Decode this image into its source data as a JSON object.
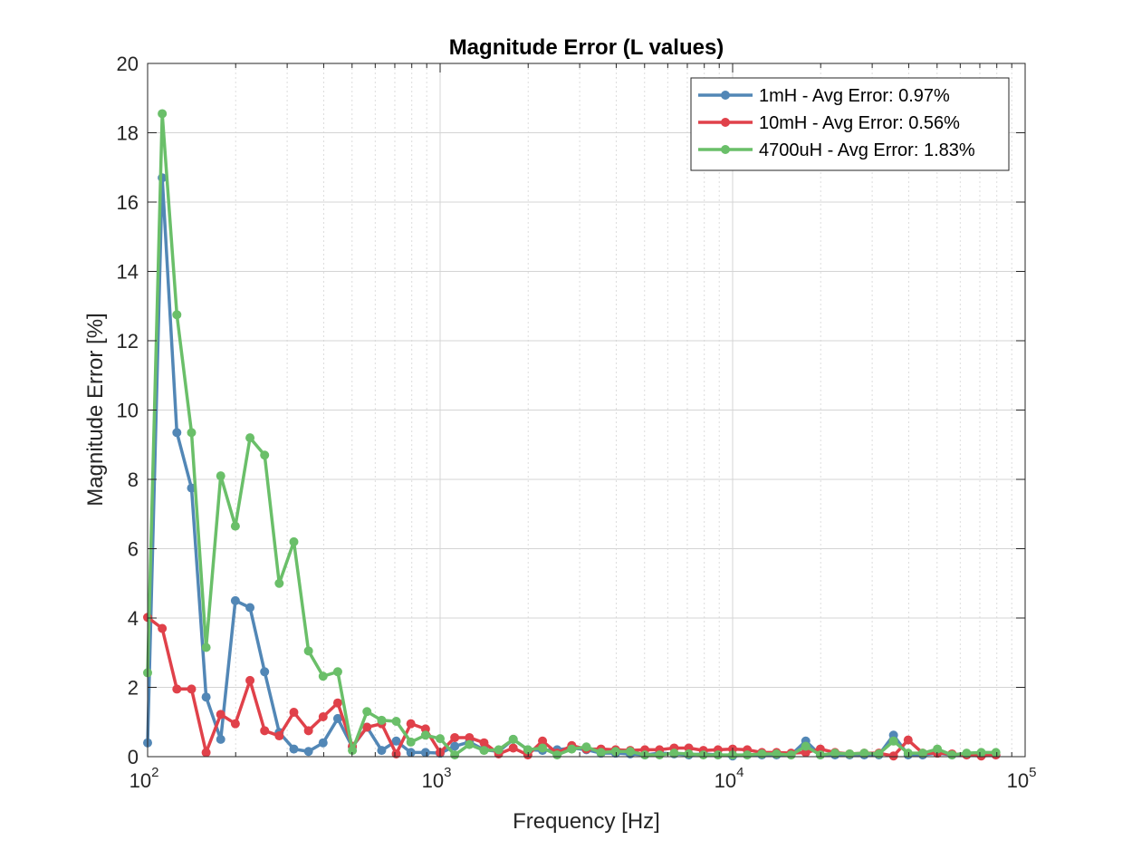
{
  "chart_data": {
    "type": "line",
    "title": "Magnitude Error (L values)",
    "xlabel": "Frequency [Hz]",
    "ylabel": "Magnitude Error [%]",
    "xscale": "log",
    "xlim": [
      100,
      100000
    ],
    "ylim": [
      0,
      20
    ],
    "grid": true,
    "legend_position": "top-right",
    "yticks": [
      "0",
      "2",
      "4",
      "6",
      "8",
      "10",
      "12",
      "14",
      "16",
      "18",
      "20"
    ],
    "xticks": [
      {
        "base": "10",
        "exp": "2"
      },
      {
        "base": "10",
        "exp": "3"
      },
      {
        "base": "10",
        "exp": "4"
      },
      {
        "base": "10",
        "exp": "5"
      }
    ],
    "x": [
      100,
      112.2,
      125.9,
      141.3,
      158.5,
      177.8,
      199.5,
      223.9,
      251.2,
      281.8,
      316.2,
      354.8,
      398.1,
      446.7,
      501.2,
      562.3,
      631,
      707.9,
      794.3,
      891.3,
      1000,
      1122,
      1259,
      1413,
      1585,
      1778,
      1995,
      2239,
      2512,
      2818,
      3162,
      3548,
      3981,
      4467,
      5012,
      5623,
      6310,
      7079,
      7943,
      8913,
      10000,
      11220,
      12590,
      14130,
      15850,
      17780,
      19950,
      22390,
      25120,
      28180,
      31620,
      35480,
      39810,
      44670,
      50120,
      56230,
      63100,
      70790,
      79430
    ],
    "series": [
      {
        "name": "1mH - Avg Error: 0.97%",
        "color": "#5287b6",
        "values": [
          0.4,
          16.7,
          9.35,
          7.75,
          1.72,
          0.5,
          4.5,
          4.3,
          2.45,
          0.7,
          0.22,
          0.15,
          0.4,
          1.1,
          0.28,
          0.85,
          0.18,
          0.45,
          0.12,
          0.12,
          0.1,
          0.3,
          0.42,
          0.2,
          0.15,
          0.5,
          0.2,
          0.18,
          0.2,
          0.25,
          0.2,
          0.1,
          0.1,
          0.08,
          0.05,
          0.1,
          0.08,
          0.05,
          0.08,
          0.05,
          0.02,
          0.05,
          0.05,
          0.05,
          0.05,
          0.45,
          0.05,
          0.05,
          0.05,
          0.05,
          0.05,
          0.62,
          0.05,
          0.05,
          0.1,
          0.05,
          0.05,
          0.05,
          0.05
        ]
      },
      {
        "name": "10mH - Avg Error: 0.56%",
        "color": "#e0414a",
        "values": [
          4.02,
          3.7,
          1.95,
          1.95,
          0.12,
          1.22,
          0.95,
          2.2,
          0.75,
          0.6,
          1.28,
          0.75,
          1.15,
          1.55,
          0.3,
          0.85,
          0.95,
          0.08,
          0.95,
          0.8,
          0.12,
          0.55,
          0.55,
          0.4,
          0.08,
          0.25,
          0.05,
          0.45,
          0.1,
          0.32,
          0.22,
          0.22,
          0.2,
          0.18,
          0.2,
          0.2,
          0.25,
          0.25,
          0.18,
          0.2,
          0.22,
          0.2,
          0.12,
          0.12,
          0.1,
          0.12,
          0.22,
          0.12,
          0.08,
          0.1,
          0.1,
          0.02,
          0.48,
          0.1,
          0.1,
          0.08,
          0.05,
          0.02,
          0.05
        ]
      },
      {
        "name": "4700uH - Avg Error: 1.83%",
        "color": "#6abf69",
        "values": [
          2.42,
          18.55,
          12.75,
          9.35,
          3.15,
          8.1,
          6.65,
          9.2,
          8.7,
          5.0,
          6.2,
          3.05,
          2.32,
          2.45,
          0.18,
          1.3,
          1.05,
          1.02,
          0.42,
          0.62,
          0.52,
          0.05,
          0.35,
          0.18,
          0.2,
          0.5,
          0.2,
          0.25,
          0.05,
          0.22,
          0.28,
          0.12,
          0.15,
          0.15,
          0.05,
          0.05,
          0.1,
          0.08,
          0.05,
          0.05,
          0.05,
          0.05,
          0.08,
          0.08,
          0.05,
          0.3,
          0.05,
          0.1,
          0.08,
          0.1,
          0.08,
          0.45,
          0.1,
          0.1,
          0.22,
          0.05,
          0.1,
          0.12,
          0.12
        ]
      }
    ]
  }
}
